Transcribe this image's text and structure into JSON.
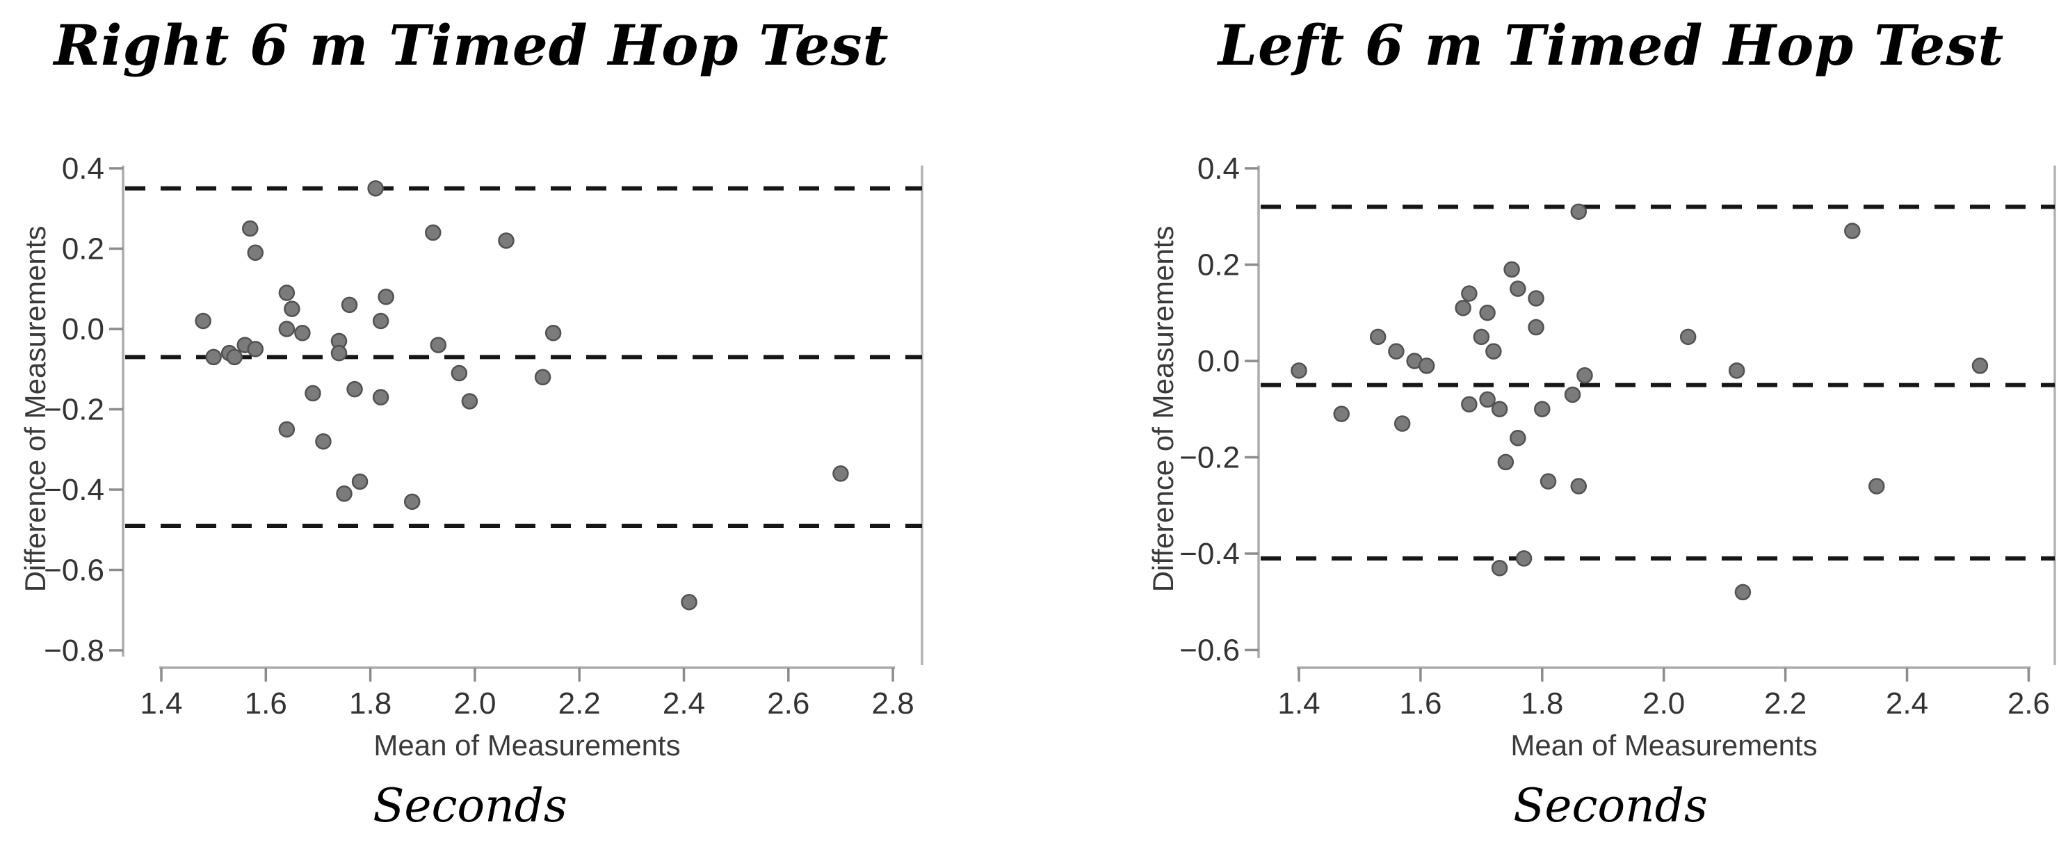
{
  "page": {
    "background": "#ffffff",
    "figure_type": "Bland-Altman agreement plots, two panels"
  },
  "chart_data": [
    {
      "type": "scatter",
      "title": "Right 6 m Timed Hop Test",
      "xlabel": "Mean of Measurements",
      "ylabel": "Difference of Measurements",
      "unit_label": "Seconds",
      "xlim": [
        1.4,
        2.8
      ],
      "ylim": [
        0.4,
        -0.8
      ],
      "grid": false,
      "legend": false,
      "x_ticks": [
        {
          "label": "1.4",
          "value": 1.4
        },
        {
          "label": "1.6",
          "value": 1.6
        },
        {
          "label": "1.8",
          "value": 1.8
        },
        {
          "label": "2.0",
          "value": 2.0
        },
        {
          "label": "2.2",
          "value": 2.2
        },
        {
          "label": "2.4",
          "value": 2.4
        },
        {
          "label": "2.6",
          "value": 2.6
        },
        {
          "label": "2.8",
          "value": 2.8
        }
      ],
      "y_ticks": [
        {
          "label": "0.4",
          "value": 0.4
        },
        {
          "label": "0.2",
          "value": 0.2
        },
        {
          "label": "0.0",
          "value": 0.0
        },
        {
          "label": "−0.2",
          "value": -0.2
        },
        {
          "label": "−0.4",
          "value": -0.4
        },
        {
          "label": "−0.6",
          "value": -0.6
        },
        {
          "label": "−0.8",
          "value": -0.8
        }
      ],
      "agreement_lines": {
        "upper_loa": 0.35,
        "mean_bias": -0.07,
        "lower_loa": -0.49
      },
      "line_style": "dashed",
      "point_color": "#7b7b7b",
      "point_edge_color": "#525252",
      "line_color": "#161616",
      "axis_color": "#ababab",
      "points": [
        [
          1.48,
          0.02
        ],
        [
          1.5,
          -0.07
        ],
        [
          1.53,
          -0.06
        ],
        [
          1.54,
          -0.07
        ],
        [
          1.56,
          -0.04
        ],
        [
          1.57,
          0.25
        ],
        [
          1.58,
          0.19
        ],
        [
          1.58,
          -0.05
        ],
        [
          1.64,
          0.09
        ],
        [
          1.64,
          0.0
        ],
        [
          1.64,
          -0.25
        ],
        [
          1.65,
          0.05
        ],
        [
          1.67,
          -0.01
        ],
        [
          1.69,
          -0.16
        ],
        [
          1.71,
          -0.28
        ],
        [
          1.74,
          -0.03
        ],
        [
          1.74,
          -0.06
        ],
        [
          1.75,
          -0.41
        ],
        [
          1.76,
          0.06
        ],
        [
          1.77,
          -0.15
        ],
        [
          1.78,
          -0.38
        ],
        [
          1.81,
          0.35
        ],
        [
          1.82,
          0.02
        ],
        [
          1.82,
          -0.17
        ],
        [
          1.83,
          0.08
        ],
        [
          1.88,
          -0.43
        ],
        [
          1.92,
          0.24
        ],
        [
          1.93,
          -0.04
        ],
        [
          1.97,
          -0.11
        ],
        [
          1.99,
          -0.18
        ],
        [
          2.06,
          0.22
        ],
        [
          2.13,
          -0.12
        ],
        [
          2.15,
          -0.01
        ],
        [
          2.41,
          -0.68
        ],
        [
          2.7,
          -0.36
        ]
      ]
    },
    {
      "type": "scatter",
      "title": "Left 6 m Timed Hop Test",
      "xlabel": "Mean of Measurements",
      "ylabel": "Difference of Measurements",
      "unit_label": "Seconds",
      "xlim": [
        1.4,
        2.6
      ],
      "ylim": [
        0.4,
        -0.6
      ],
      "grid": false,
      "legend": false,
      "x_ticks": [
        {
          "label": "1.4",
          "value": 1.4
        },
        {
          "label": "1.6",
          "value": 1.6
        },
        {
          "label": "1.8",
          "value": 1.8
        },
        {
          "label": "2.0",
          "value": 2.0
        },
        {
          "label": "2.2",
          "value": 2.2
        },
        {
          "label": "2.4",
          "value": 2.4
        },
        {
          "label": "2.6",
          "value": 2.6
        }
      ],
      "y_ticks": [
        {
          "label": "0.4",
          "value": 0.4
        },
        {
          "label": "0.2",
          "value": 0.2
        },
        {
          "label": "0.0",
          "value": 0.0
        },
        {
          "label": "−0.2",
          "value": -0.2
        },
        {
          "label": "−0.4",
          "value": -0.4
        },
        {
          "label": "−0.6",
          "value": -0.6
        }
      ],
      "agreement_lines": {
        "upper_loa": 0.32,
        "mean_bias": -0.05,
        "lower_loa": -0.41
      },
      "line_style": "dashed",
      "point_color": "#7b7b7b",
      "point_edge_color": "#525252",
      "line_color": "#161616",
      "axis_color": "#ababab",
      "points": [
        [
          1.4,
          -0.02
        ],
        [
          1.47,
          -0.11
        ],
        [
          1.53,
          0.05
        ],
        [
          1.56,
          0.02
        ],
        [
          1.57,
          -0.13
        ],
        [
          1.59,
          0.0
        ],
        [
          1.61,
          -0.01
        ],
        [
          1.67,
          0.11
        ],
        [
          1.68,
          0.14
        ],
        [
          1.68,
          -0.09
        ],
        [
          1.7,
          0.05
        ],
        [
          1.71,
          0.1
        ],
        [
          1.71,
          -0.08
        ],
        [
          1.72,
          0.02
        ],
        [
          1.73,
          -0.1
        ],
        [
          1.73,
          -0.43
        ],
        [
          1.74,
          -0.21
        ],
        [
          1.75,
          0.19
        ],
        [
          1.76,
          0.15
        ],
        [
          1.76,
          -0.16
        ],
        [
          1.77,
          -0.41
        ],
        [
          1.79,
          0.13
        ],
        [
          1.79,
          0.07
        ],
        [
          1.8,
          -0.1
        ],
        [
          1.81,
          -0.25
        ],
        [
          1.85,
          -0.07
        ],
        [
          1.86,
          0.31
        ],
        [
          1.86,
          -0.26
        ],
        [
          1.87,
          -0.03
        ],
        [
          2.04,
          0.05
        ],
        [
          2.12,
          -0.02
        ],
        [
          2.13,
          -0.48
        ],
        [
          2.31,
          0.27
        ],
        [
          2.35,
          -0.26
        ],
        [
          2.52,
          -0.01
        ]
      ]
    }
  ]
}
